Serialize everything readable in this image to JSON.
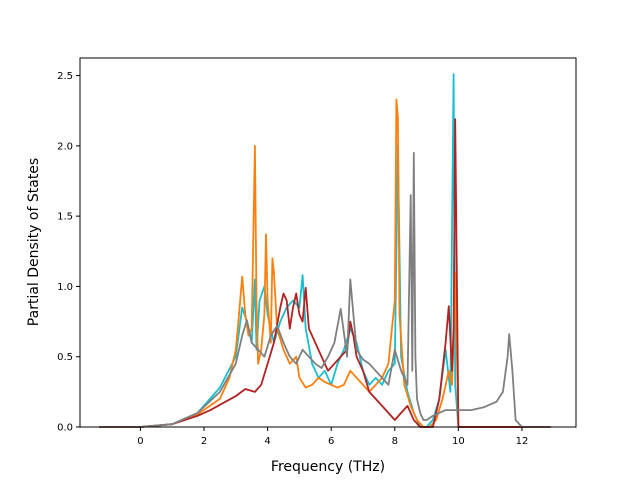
{
  "chart_data": {
    "type": "line",
    "title": "",
    "xlabel": "Frequency (THz)",
    "ylabel": "Partial Density of States",
    "xlim": [
      -1.9,
      13.7
    ],
    "ylim": [
      0,
      2.5
    ],
    "x_ticks": [
      0,
      2,
      4,
      6,
      8,
      10,
      12
    ],
    "y_ticks": [
      0.0,
      0.5,
      1.0,
      1.5,
      2.0,
      2.5
    ],
    "x_tick_labels": [
      "0",
      "2",
      "4",
      "6",
      "8",
      "10",
      "12"
    ],
    "y_tick_labels": [
      "0.0",
      "0.5",
      "1.0",
      "1.5",
      "2.0",
      "2.5"
    ],
    "grid": false,
    "legend": "none",
    "series": [
      {
        "color": "#17becf",
        "x": [
          -1.3,
          0.0,
          1.0,
          1.8,
          2.5,
          3.0,
          3.2,
          3.35,
          3.5,
          3.6,
          3.65,
          3.75,
          3.9,
          4.0,
          4.1,
          4.2,
          4.4,
          4.6,
          4.8,
          5.0,
          5.1,
          5.2,
          5.4,
          5.6,
          5.8,
          6.0,
          6.2,
          6.4,
          6.6,
          6.8,
          7.0,
          7.2,
          7.4,
          7.6,
          7.8,
          8.0,
          8.1,
          8.2,
          8.4,
          8.6,
          8.8,
          9.0,
          9.2,
          9.4,
          9.6,
          9.75,
          9.85,
          9.9,
          10.0,
          10.5,
          11.0,
          12.0,
          12.9
        ],
        "y": [
          0,
          0,
          0.02,
          0.1,
          0.28,
          0.5,
          0.85,
          0.75,
          0.6,
          1.05,
          0.55,
          0.9,
          1.0,
          0.8,
          0.7,
          0.6,
          0.75,
          0.85,
          0.9,
          0.85,
          1.08,
          0.7,
          0.45,
          0.35,
          0.4,
          0.3,
          0.45,
          0.55,
          0.7,
          0.6,
          0.4,
          0.3,
          0.35,
          0.3,
          0.4,
          0.45,
          2.0,
          0.5,
          0.25,
          0.1,
          0,
          0,
          0.05,
          0.2,
          0.55,
          0.25,
          2.51,
          0.3,
          0,
          0,
          0,
          0,
          0
        ]
      },
      {
        "color": "#ff7f0e",
        "x": [
          -1.3,
          0.0,
          1.0,
          1.8,
          2.5,
          2.8,
          3.0,
          3.1,
          3.2,
          3.3,
          3.4,
          3.5,
          3.6,
          3.65,
          3.7,
          3.8,
          3.9,
          3.95,
          4.0,
          4.1,
          4.15,
          4.2,
          4.3,
          4.5,
          4.7,
          4.9,
          5.0,
          5.2,
          5.4,
          5.6,
          5.8,
          6.0,
          6.2,
          6.4,
          6.6,
          6.8,
          7.0,
          7.2,
          7.4,
          7.6,
          7.8,
          8.0,
          8.05,
          8.1,
          8.15,
          8.3,
          8.5,
          8.7,
          8.9,
          9.1,
          9.3,
          9.5,
          9.7,
          9.8,
          9.85,
          9.9,
          10.0,
          10.5,
          11.0,
          12.0,
          12.9
        ],
        "y": [
          0,
          0,
          0.02,
          0.09,
          0.2,
          0.35,
          0.55,
          0.8,
          1.07,
          0.8,
          0.65,
          0.7,
          2.0,
          0.9,
          0.45,
          0.55,
          0.8,
          1.37,
          0.9,
          0.6,
          1.2,
          1.1,
          0.7,
          0.55,
          0.45,
          0.5,
          0.35,
          0.28,
          0.3,
          0.35,
          0.32,
          0.3,
          0.28,
          0.3,
          0.4,
          0.35,
          0.3,
          0.25,
          0.3,
          0.35,
          0.45,
          0.9,
          2.33,
          2.2,
          0.8,
          0.3,
          0.15,
          0.05,
          0,
          0,
          0.05,
          0.2,
          0.4,
          0.3,
          0.6,
          1.1,
          0,
          0,
          0,
          0,
          0
        ]
      },
      {
        "color": "#b22222",
        "x": [
          -1.3,
          0.0,
          1.0,
          1.8,
          2.2,
          2.6,
          3.0,
          3.3,
          3.6,
          3.8,
          4.0,
          4.2,
          4.4,
          4.5,
          4.6,
          4.7,
          4.8,
          4.9,
          5.0,
          5.1,
          5.2,
          5.3,
          5.5,
          5.7,
          5.9,
          6.1,
          6.3,
          6.5,
          6.6,
          6.7,
          6.8,
          7.0,
          7.2,
          7.4,
          7.6,
          7.8,
          8.0,
          8.2,
          8.4,
          8.6,
          8.8,
          9.0,
          9.2,
          9.4,
          9.6,
          9.7,
          9.8,
          9.85,
          9.9,
          10.0,
          10.5,
          11.0,
          12.0,
          12.9
        ],
        "y": [
          0,
          0,
          0.02,
          0.08,
          0.12,
          0.17,
          0.22,
          0.27,
          0.25,
          0.3,
          0.45,
          0.6,
          0.85,
          0.95,
          0.9,
          0.7,
          0.85,
          0.95,
          0.8,
          0.75,
          0.99,
          0.7,
          0.6,
          0.5,
          0.4,
          0.45,
          0.5,
          0.55,
          0.75,
          0.65,
          0.5,
          0.4,
          0.25,
          0.2,
          0.15,
          0.1,
          0.05,
          0.1,
          0.15,
          0.05,
          0,
          0,
          0,
          0.2,
          0.6,
          0.86,
          0.4,
          0.7,
          2.19,
          0,
          0,
          0,
          0,
          0
        ]
      },
      {
        "color": "#7f7f7f",
        "x": [
          -1.3,
          0.0,
          1.0,
          1.8,
          2.5,
          3.0,
          3.2,
          3.35,
          3.5,
          3.7,
          3.9,
          4.1,
          4.3,
          4.5,
          4.7,
          4.9,
          5.1,
          5.3,
          5.5,
          5.7,
          5.9,
          6.1,
          6.3,
          6.5,
          6.6,
          6.7,
          6.8,
          7.0,
          7.2,
          7.4,
          7.6,
          7.8,
          8.0,
          8.2,
          8.4,
          8.5,
          8.55,
          8.6,
          8.65,
          8.7,
          8.8,
          8.9,
          9.0,
          9.2,
          9.4,
          9.6,
          9.8,
          10.0,
          10.4,
          10.8,
          11.2,
          11.4,
          11.55,
          11.6,
          11.7,
          11.8,
          12.0,
          12.9
        ],
        "y": [
          0,
          0,
          0.02,
          0.1,
          0.25,
          0.45,
          0.65,
          0.76,
          0.6,
          0.55,
          0.5,
          0.65,
          0.72,
          0.6,
          0.5,
          0.45,
          0.55,
          0.5,
          0.45,
          0.42,
          0.5,
          0.6,
          0.84,
          0.5,
          1.05,
          0.8,
          0.55,
          0.48,
          0.45,
          0.4,
          0.35,
          0.3,
          0.55,
          0.4,
          0.3,
          1.65,
          0.4,
          1.95,
          0.5,
          0.2,
          0.1,
          0.05,
          0.05,
          0.08,
          0.1,
          0.12,
          0.12,
          0.12,
          0.12,
          0.14,
          0.18,
          0.25,
          0.5,
          0.66,
          0.4,
          0.05,
          0,
          0
        ]
      }
    ]
  }
}
